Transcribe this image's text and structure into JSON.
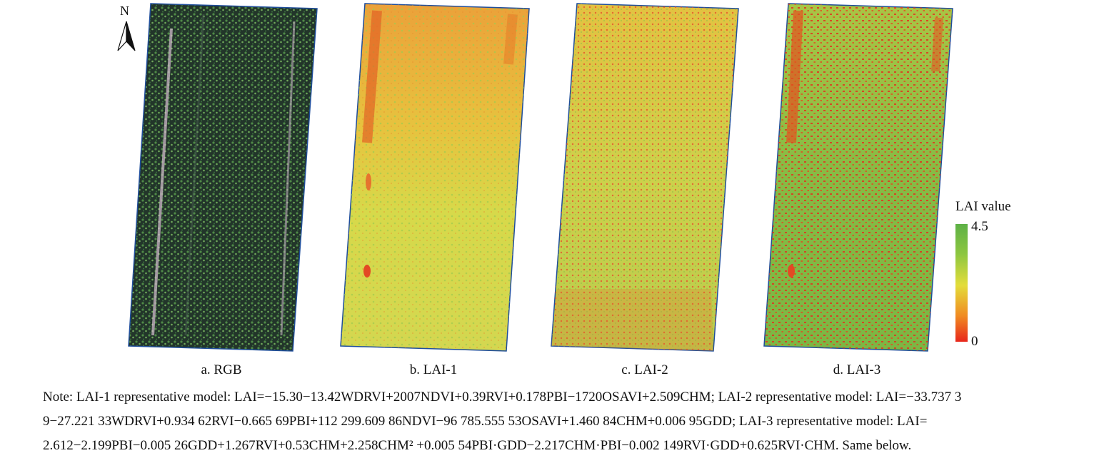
{
  "north_label": "N",
  "panels": [
    {
      "id": "a",
      "caption": "a. RGB"
    },
    {
      "id": "b",
      "caption": "b. LAI-1"
    },
    {
      "id": "c",
      "caption": "c. LAI-2"
    },
    {
      "id": "d",
      "caption": "d. LAI-3"
    }
  ],
  "legend": {
    "title": "LAI value",
    "max": "4.5",
    "min": "0",
    "colors": [
      "#5db146",
      "#e3dd3a",
      "#e8261b"
    ]
  },
  "note": {
    "line1": "Note: LAI-1 representative model: LAI=−15.30−13.42WDRVI+2007NDVI+0.39RVI+0.178PBI−1720OSAVI+2.509CHM; LAI-2 representative model: LAI=−33.737 3",
    "line2": "9−27.221 33WDRVI+0.934 62RVI−0.665 69PBI+112 299.609 86NDVI−96 785.555 53OSAVI+1.460 84CHM+0.006 95GDD; LAI-3 representative model: LAI=",
    "line3": "2.612−2.199PBI−0.005 26GDD+1.267RVI+0.53CHM+2.258CHM² +0.005 54PBI·GDD−2.217CHM·PBI−0.002 149RVI·GDD+0.625RVI·CHM. Same below."
  }
}
